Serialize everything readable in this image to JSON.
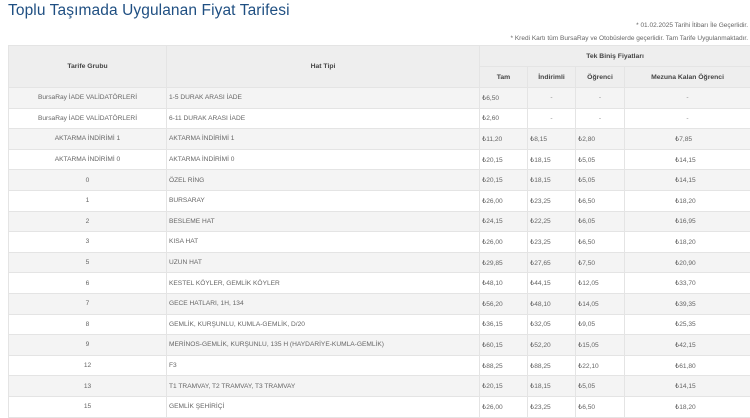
{
  "title": "Toplu Taşımada Uygulanan Fiyat Tarifesi",
  "notes": [
    "* 01.02.2025 Tarihi İtibarı İle Geçerlidir.",
    "* Kredi Kartı tüm BursaRay ve Otobüslerde geçerlidir. Tam Tarife Uygulanmaktadır."
  ],
  "headers": {
    "group": "Tarife Grubu",
    "line_type": "Hat Tipi",
    "single_fare": "Tek Biniş Fiyatları",
    "tam": "Tam",
    "indirimli": "İndirimli",
    "ogrenci": "Öğrenci",
    "mezuna": "Mezuna Kalan Öğrenci"
  },
  "rows": [
    {
      "group": "BursaRay İADE VALİDATÖRLERİ",
      "line": "1-5 DURAK ARASI İADE",
      "tam": "₺6,50",
      "indirimli": "-",
      "ogrenci": "-",
      "mezuna": "-"
    },
    {
      "group": "BursaRay İADE VALİDATÖRLERİ",
      "line": "6-11 DURAK ARASI İADE",
      "tam": "₺2,60",
      "indirimli": "-",
      "ogrenci": "-",
      "mezuna": "-"
    },
    {
      "group": "AKTARMA İNDİRİMİ 1",
      "line": "AKTARMA İNDİRİMİ 1",
      "tam": "₺11,20",
      "indirimli": "₺8,15",
      "ogrenci": "₺2,80",
      "mezuna": "₺7,85"
    },
    {
      "group": "AKTARMA İNDİRİMİ 0",
      "line": "AKTARMA İNDİRİMİ 0",
      "tam": "₺20,15",
      "indirimli": "₺18,15",
      "ogrenci": "₺5,05",
      "mezuna": "₺14,15"
    },
    {
      "group": "0",
      "line": "ÖZEL RİNG",
      "tam": "₺20,15",
      "indirimli": "₺18,15",
      "ogrenci": "₺5,05",
      "mezuna": "₺14,15"
    },
    {
      "group": "1",
      "line": "BURSARAY",
      "tam": "₺26,00",
      "indirimli": "₺23,25",
      "ogrenci": "₺6,50",
      "mezuna": "₺18,20"
    },
    {
      "group": "2",
      "line": "BESLEME HAT",
      "tam": "₺24,15",
      "indirimli": "₺22,25",
      "ogrenci": "₺6,05",
      "mezuna": "₺16,95"
    },
    {
      "group": "3",
      "line": "KISA HAT",
      "tam": "₺26,00",
      "indirimli": "₺23,25",
      "ogrenci": "₺6,50",
      "mezuna": "₺18,20"
    },
    {
      "group": "5",
      "line": "UZUN HAT",
      "tam": "₺29,85",
      "indirimli": "₺27,65",
      "ogrenci": "₺7,50",
      "mezuna": "₺20,90"
    },
    {
      "group": "6",
      "line": "KESTEL KÖYLER, GEMLİK KÖYLER",
      "tam": "₺48,10",
      "indirimli": "₺44,15",
      "ogrenci": "₺12,05",
      "mezuna": "₺33,70"
    },
    {
      "group": "7",
      "line": "GECE HATLARI, 1H, 134",
      "tam": "₺56,20",
      "indirimli": "₺48,10",
      "ogrenci": "₺14,05",
      "mezuna": "₺39,35"
    },
    {
      "group": "8",
      "line": "GEMLİK, KURŞUNLU, KUMLA-GEMLİK, D/20",
      "tam": "₺36,15",
      "indirimli": "₺32,05",
      "ogrenci": "₺9,05",
      "mezuna": "₺25,35"
    },
    {
      "group": "9",
      "line": "MERİNOS-GEMLİK, KURŞUNLU, 135 H (HAYDARİYE-KUMLA-GEMLİK)",
      "tam": "₺60,15",
      "indirimli": "₺52,20",
      "ogrenci": "₺15,05",
      "mezuna": "₺42,15"
    },
    {
      "group": "12",
      "line": "F3",
      "tam": "₺88,25",
      "indirimli": "₺88,25",
      "ogrenci": "₺22,10",
      "mezuna": "₺61,80"
    },
    {
      "group": "13",
      "line": "T1 TRAMVAY, T2 TRAMVAY, T3 TRAMVAY",
      "tam": "₺20,15",
      "indirimli": "₺18,15",
      "ogrenci": "₺5,05",
      "mezuna": "₺14,15"
    },
    {
      "group": "15",
      "line": "GEMLİK ŞEHİRİÇİ",
      "tam": "₺26,00",
      "indirimli": "₺23,25",
      "ogrenci": "₺6,50",
      "mezuna": "₺18,20"
    }
  ]
}
